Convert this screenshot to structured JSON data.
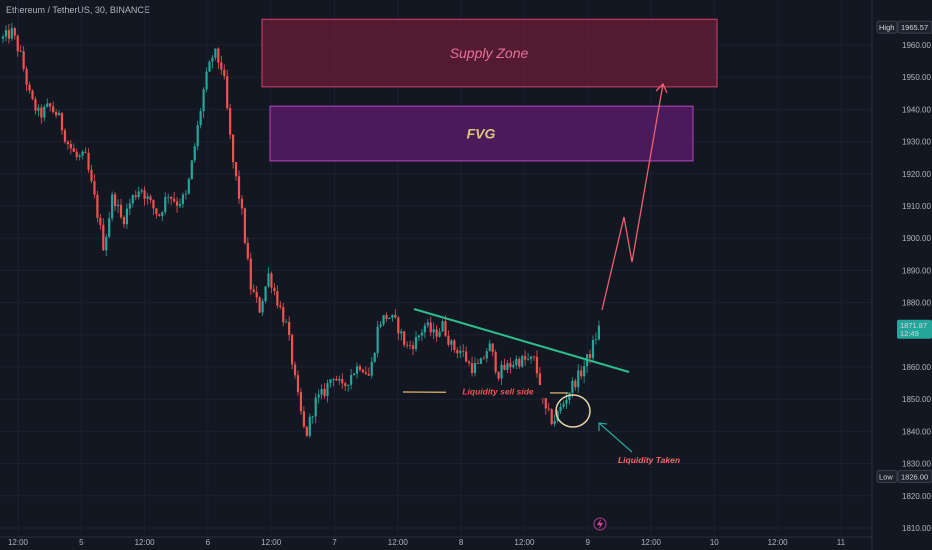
{
  "header": {
    "title": "Ethereum / TetherUS, 30, BINANCE"
  },
  "toolbar": {
    "icon": "layout-icon"
  },
  "chart_data": {
    "type": "candlestick",
    "symbol": "Ethereum / TetherUS",
    "interval": "30",
    "exchange": "BINANCE",
    "ylim": [
      1810,
      1975
    ],
    "y_ticks": [
      1810,
      1820,
      1830,
      1840,
      1850,
      1860,
      1870,
      1880,
      1890,
      1900,
      1910,
      1920,
      1930,
      1940,
      1950,
      1960
    ],
    "x_ticks": [
      "12:00",
      "5",
      "12:00",
      "6",
      "12:00",
      "7",
      "12:00",
      "8",
      "12:00",
      "9",
      "12:00",
      "10",
      "12:00",
      "11"
    ],
    "price_tags": {
      "high": {
        "label": "High",
        "value": "1965.57"
      },
      "current": {
        "value": "1871.87",
        "countdown": "12:49"
      },
      "low": {
        "label": "Low",
        "value": "1826.00"
      }
    },
    "colors": {
      "up": "#26a69a",
      "down": "#ef5350",
      "background": "#131722"
    },
    "path": [
      1962,
      1964,
      1956,
      1943,
      1938,
      1941,
      1938,
      1930,
      1925,
      1925,
      1912,
      1897,
      1914,
      1905,
      1912,
      1916,
      1911,
      1907,
      1914,
      1911,
      1913,
      1930,
      1948,
      1958,
      1952,
      1925,
      1909,
      1885,
      1878,
      1889,
      1880,
      1872,
      1853,
      1838,
      1849,
      1852,
      1858,
      1853,
      1858,
      1861,
      1857,
      1874,
      1876,
      1873,
      1866,
      1868,
      1873,
      1870,
      1873,
      1866,
      1865,
      1860,
      1860,
      1867,
      1858,
      1860,
      1862,
      1862,
      1862,
      1847,
      1843,
      1848,
      1854,
      1858,
      1864,
      1872
    ],
    "zones": [
      {
        "label": "Supply Zone",
        "top": 1968,
        "bottom": 1947,
        "color": "#8b1e3f"
      },
      {
        "label": "FVG",
        "top": 1941,
        "bottom": 1924,
        "color": "#6a1b7a"
      }
    ],
    "annotations": [
      {
        "label": "Liquidity sell side"
      },
      {
        "label": "Liquidity Taken"
      }
    ]
  }
}
